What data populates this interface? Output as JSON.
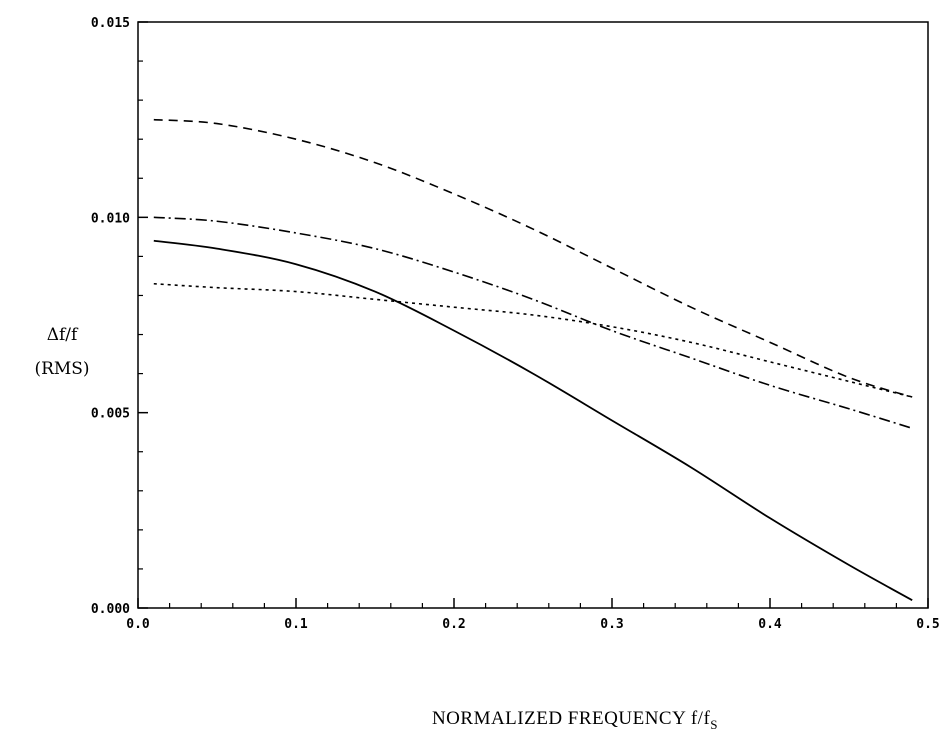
{
  "chart_data": {
    "type": "line",
    "title": "",
    "ylabel_lines": [
      "Δf/f",
      "(RMS)"
    ],
    "xlabel": "NORMALIZED FREQUENCY  f/f",
    "xlabel_subscript": "S",
    "xlim": [
      0.0,
      0.5
    ],
    "ylim": [
      0.0,
      0.015
    ],
    "x_ticks": [
      0.0,
      0.1,
      0.2,
      0.3,
      0.4,
      0.5
    ],
    "x_tick_labels": [
      "0.0",
      "0.1",
      "0.2",
      "0.3",
      "0.4",
      "0.5"
    ],
    "y_ticks": [
      0.0,
      0.005,
      0.01,
      0.015
    ],
    "y_tick_labels": [
      "0.000",
      "0.005",
      "0.010",
      "0.015"
    ],
    "grid": false,
    "legend": "none",
    "series": [
      {
        "style": "solid",
        "x": [
          0.01,
          0.05,
          0.1,
          0.15,
          0.2,
          0.25,
          0.3,
          0.35,
          0.4,
          0.45,
          0.49
        ],
        "values": [
          0.0094,
          0.0092,
          0.0088,
          0.0081,
          0.0071,
          0.006,
          0.0048,
          0.0036,
          0.0023,
          0.0011,
          0.0002
        ]
      },
      {
        "style": "dashed",
        "x": [
          0.01,
          0.05,
          0.1,
          0.15,
          0.2,
          0.25,
          0.3,
          0.35,
          0.4,
          0.45,
          0.49
        ],
        "values": [
          0.0125,
          0.0124,
          0.012,
          0.0114,
          0.0106,
          0.0097,
          0.0087,
          0.0077,
          0.0068,
          0.0059,
          0.0054
        ]
      },
      {
        "style": "dash-dot",
        "x": [
          0.01,
          0.05,
          0.1,
          0.15,
          0.2,
          0.25,
          0.3,
          0.35,
          0.4,
          0.45,
          0.49
        ],
        "values": [
          0.01,
          0.0099,
          0.0096,
          0.0092,
          0.0086,
          0.0079,
          0.0071,
          0.0064,
          0.0057,
          0.0051,
          0.0046
        ]
      },
      {
        "style": "dotted",
        "x": [
          0.01,
          0.05,
          0.1,
          0.15,
          0.2,
          0.25,
          0.3,
          0.35,
          0.4,
          0.45,
          0.49
        ],
        "values": [
          0.0083,
          0.0082,
          0.0081,
          0.0079,
          0.0077,
          0.0075,
          0.0072,
          0.0068,
          0.0063,
          0.0058,
          0.0054
        ]
      }
    ]
  }
}
